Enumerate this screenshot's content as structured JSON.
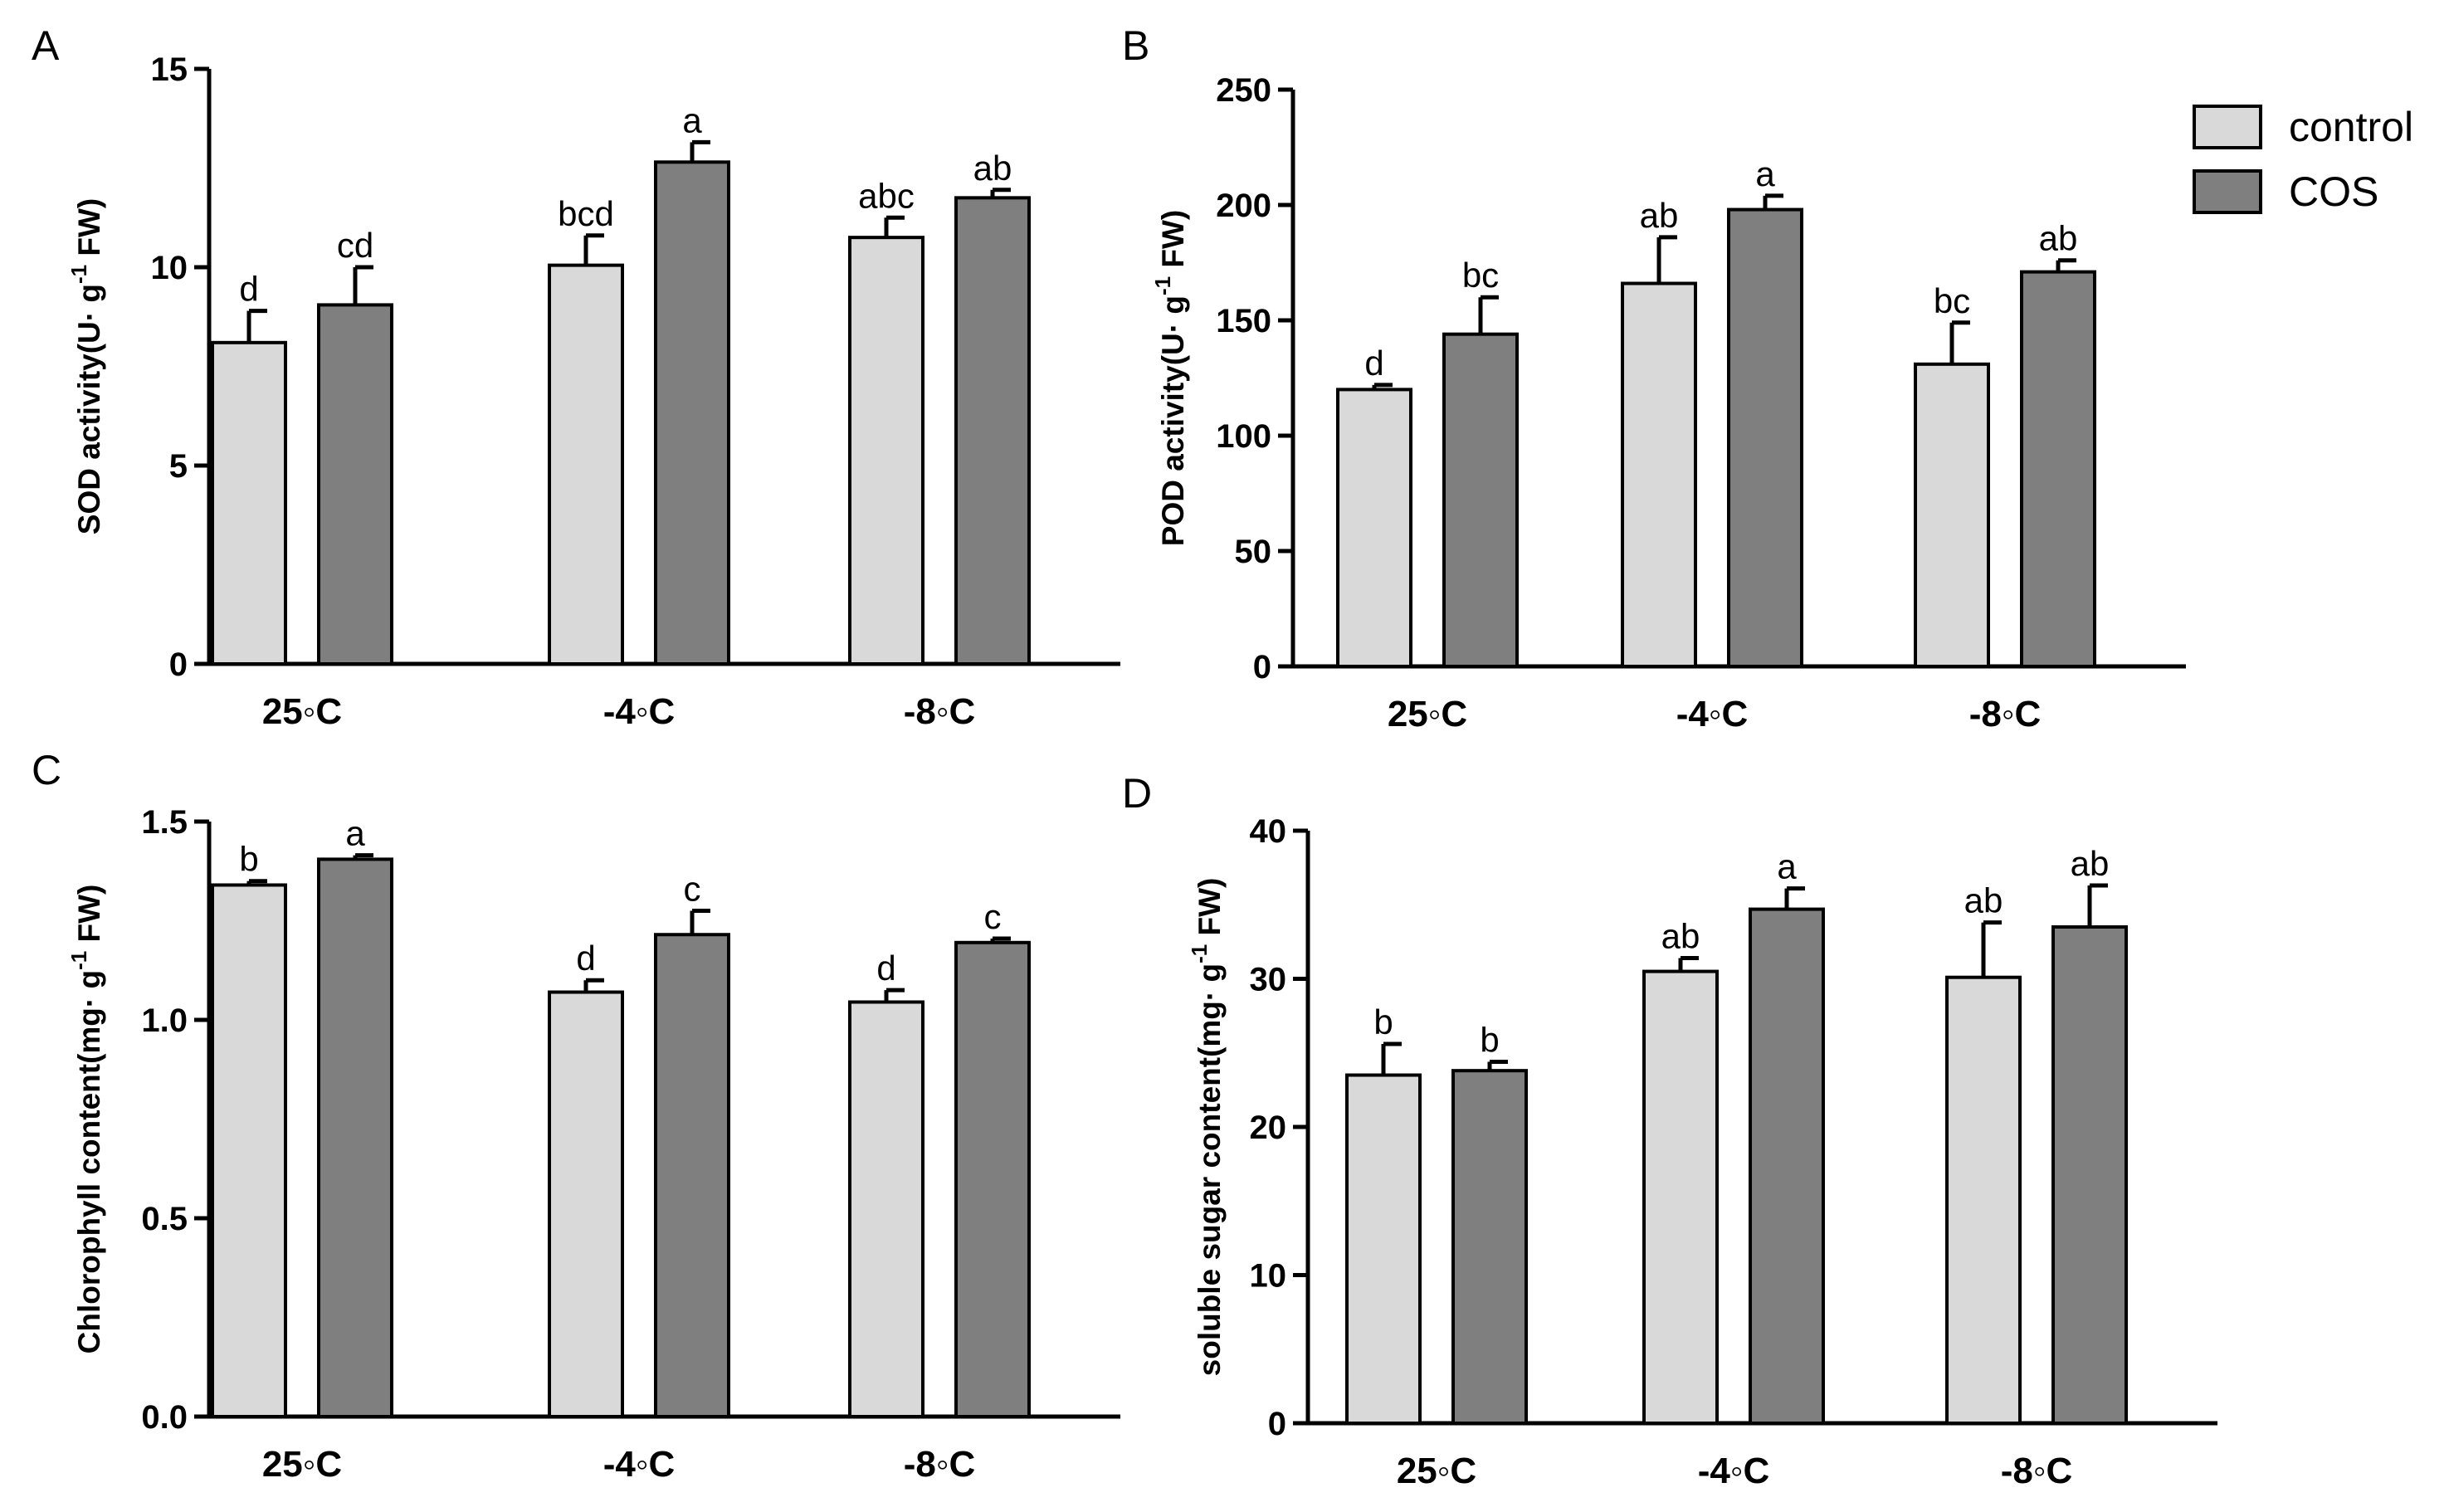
{
  "legend": {
    "items": [
      {
        "label": "control",
        "color": "#d9d9d9"
      },
      {
        "label": "COS",
        "color": "#7f7f7f"
      }
    ]
  },
  "chart_data": [
    {
      "type": "bar",
      "panel": "A",
      "ylabel_main": "SOD activity(U· g",
      "ylabel_sup": "-1",
      "ylabel_end": " FW)",
      "categories": [
        "25◦C",
        "-4◦C",
        "-8◦C"
      ],
      "ylim": [
        0,
        15
      ],
      "yticks": [
        0,
        5,
        10,
        15
      ],
      "series": [
        {
          "name": "control",
          "values": [
            8.1,
            10.05,
            10.75
          ],
          "errors": [
            0.8,
            0.75,
            0.5
          ],
          "sig": [
            "d",
            "bcd",
            "abc"
          ]
        },
        {
          "name": "COS",
          "values": [
            9.05,
            12.65,
            11.75
          ],
          "errors": [
            0.95,
            0.5,
            0.2
          ],
          "sig": [
            "cd",
            "a",
            "ab"
          ]
        }
      ]
    },
    {
      "type": "bar",
      "panel": "B",
      "ylabel_main": "POD activity(U· g",
      "ylabel_sup": "-1",
      "ylabel_end": " FW)",
      "categories": [
        "25◦C",
        "-4◦C",
        "-8◦C"
      ],
      "ylim": [
        0,
        250
      ],
      "yticks": [
        0,
        50,
        100,
        150,
        200,
        250
      ],
      "series": [
        {
          "name": "control",
          "values": [
            120,
            166,
            131
          ],
          "errors": [
            2,
            20,
            18
          ],
          "sig": [
            "d",
            "ab",
            "bc"
          ]
        },
        {
          "name": "COS",
          "values": [
            144,
            198,
            171
          ],
          "errors": [
            16,
            6,
            5
          ],
          "sig": [
            "bc",
            "a",
            "ab"
          ]
        }
      ]
    },
    {
      "type": "bar",
      "panel": "C",
      "ylabel_main": "Chlorophyll content(mg· g",
      "ylabel_sup": "-1",
      "ylabel_end": " FW)",
      "categories": [
        "25◦C",
        "-4◦C",
        "-8◦C"
      ],
      "ylim": [
        0,
        1.5
      ],
      "yticks": [
        "0.0",
        "0.5",
        "1.0",
        "1.5"
      ],
      "series": [
        {
          "name": "control",
          "values": [
            1.34,
            1.07,
            1.045
          ],
          "errors": [
            0.01,
            0.03,
            0.03
          ],
          "sig": [
            "b",
            "d",
            "d"
          ]
        },
        {
          "name": "COS",
          "values": [
            1.405,
            1.215,
            1.195
          ],
          "errors": [
            0.01,
            0.06,
            0.01
          ],
          "sig": [
            "a",
            "c",
            "c"
          ]
        }
      ]
    },
    {
      "type": "bar",
      "panel": "D",
      "ylabel_main": "soluble sugar content(mg· g",
      "ylabel_sup": "-1",
      "ylabel_end": " FW)",
      "categories": [
        "25◦C",
        "-4◦C",
        "-8◦C"
      ],
      "ylim": [
        0,
        40
      ],
      "yticks": [
        0,
        10,
        20,
        30,
        40
      ],
      "series": [
        {
          "name": "control",
          "values": [
            23.5,
            30.5,
            30.1
          ],
          "errors": [
            2.1,
            0.9,
            3.7
          ],
          "sig": [
            "b",
            "ab",
            "ab"
          ]
        },
        {
          "name": "COS",
          "values": [
            23.8,
            34.7,
            33.5
          ],
          "errors": [
            0.6,
            1.4,
            2.8
          ],
          "sig": [
            "b",
            "a",
            "ab"
          ]
        }
      ]
    }
  ]
}
